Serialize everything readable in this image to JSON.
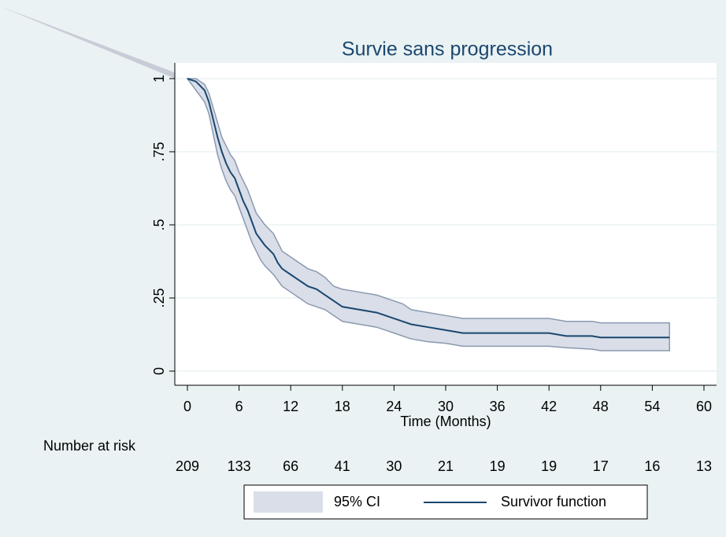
{
  "chart_data": {
    "type": "line",
    "title": "Survie sans progression",
    "xlabel": "Time (Months)",
    "x": [
      0,
      1,
      2,
      2.5,
      3,
      3.5,
      4,
      4.5,
      5,
      5.5,
      6,
      6.5,
      7,
      7.5,
      8,
      8.5,
      9,
      10,
      10.5,
      11,
      12,
      13,
      14,
      15,
      16,
      17,
      18,
      20,
      22,
      23,
      24,
      25,
      26,
      28,
      30,
      32,
      36,
      42,
      44,
      47,
      48,
      56
    ],
    "series": [
      {
        "name": "95% CI",
        "color": "#d9dee8",
        "edge_color": "#8a9ab0",
        "upper": [
          1,
          1,
          0.98,
          0.95,
          0.9,
          0.85,
          0.8,
          0.77,
          0.74,
          0.72,
          0.68,
          0.65,
          0.62,
          0.58,
          0.54,
          0.52,
          0.5,
          0.47,
          0.44,
          0.41,
          0.39,
          0.37,
          0.35,
          0.34,
          0.32,
          0.29,
          0.28,
          0.27,
          0.26,
          0.25,
          0.24,
          0.23,
          0.21,
          0.2,
          0.19,
          0.18,
          0.18,
          0.18,
          0.17,
          0.17,
          0.165,
          0.165
        ],
        "lower": [
          1,
          0.96,
          0.92,
          0.88,
          0.81,
          0.74,
          0.69,
          0.65,
          0.62,
          0.6,
          0.56,
          0.52,
          0.48,
          0.44,
          0.41,
          0.38,
          0.36,
          0.33,
          0.31,
          0.29,
          0.27,
          0.25,
          0.23,
          0.22,
          0.21,
          0.19,
          0.17,
          0.16,
          0.15,
          0.14,
          0.13,
          0.12,
          0.11,
          0.1,
          0.095,
          0.085,
          0.085,
          0.085,
          0.08,
          0.075,
          0.07,
          0.07
        ]
      },
      {
        "name": "Survivor function",
        "color": "#1a476f",
        "values": [
          1,
          0.99,
          0.96,
          0.92,
          0.86,
          0.8,
          0.75,
          0.71,
          0.68,
          0.66,
          0.62,
          0.58,
          0.55,
          0.51,
          0.47,
          0.45,
          0.43,
          0.4,
          0.37,
          0.35,
          0.33,
          0.31,
          0.29,
          0.28,
          0.26,
          0.24,
          0.22,
          0.21,
          0.2,
          0.19,
          0.18,
          0.17,
          0.16,
          0.15,
          0.14,
          0.13,
          0.13,
          0.13,
          0.12,
          0.12,
          0.115,
          0.115
        ]
      }
    ],
    "xlim": [
      0,
      60
    ],
    "xticks": [
      0,
      6,
      12,
      18,
      24,
      30,
      36,
      42,
      48,
      54,
      60
    ],
    "ylim": [
      0,
      1
    ],
    "yticks": [
      0,
      {
        "value": 0.25,
        "label": ".25"
      },
      {
        "value": 0.5,
        "label": ".5"
      },
      {
        "value": 0.75,
        "label": ".75"
      },
      1
    ],
    "grid": true,
    "risk_table": {
      "label": "Number at risk",
      "values": [
        209,
        133,
        66,
        41,
        30,
        21,
        19,
        19,
        17,
        16,
        13
      ]
    }
  }
}
